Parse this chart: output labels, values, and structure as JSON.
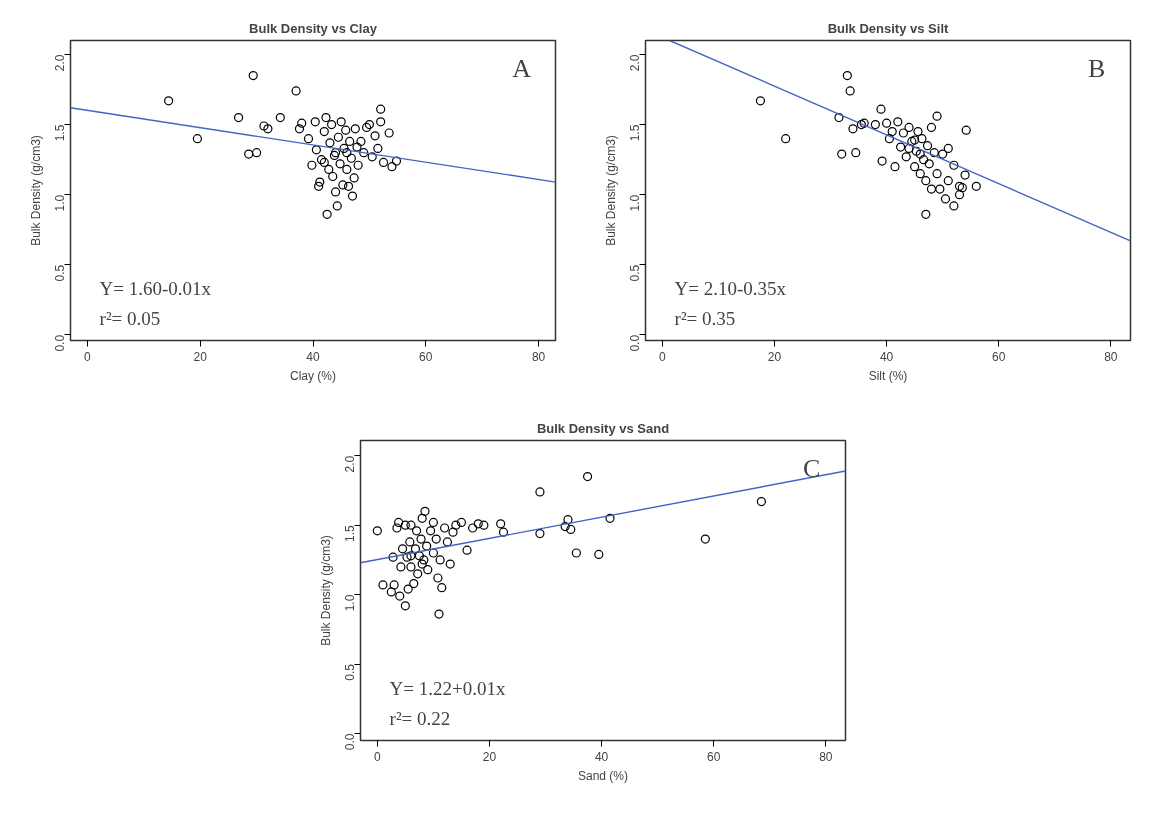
{
  "chart_data": [
    {
      "type": "scatter",
      "title": "Bulk Density vs Clay",
      "xlabel": "Clay (%)",
      "ylabel": "Bulk Density (g/cm3)",
      "xlim": [
        -3,
        83
      ],
      "ylim": [
        -0.04,
        2.1
      ],
      "xticks": [
        0,
        20,
        40,
        60,
        80
      ],
      "yticks": [
        {
          "value": 0,
          "label": "0.0"
        },
        {
          "value": 0.5,
          "label": "0.5"
        },
        {
          "value": 1,
          "label": "1.0"
        },
        {
          "value": 1.5,
          "label": "1.5"
        },
        {
          "value": 2,
          "label": "2.0"
        }
      ],
      "grid": false,
      "annotations": [
        "A",
        "Y= 1.60-0.01x",
        "r²= 0.05"
      ],
      "series": [
        {
          "marker": "circle",
          "color": "#000000",
          "x": [
            14.4,
            19.5,
            26.8,
            28.6,
            29.4,
            30.0,
            31.3,
            32.0,
            34.2,
            37.0,
            37.6,
            38.0,
            39.2,
            39.8,
            40.4,
            40.6,
            41,
            41.2,
            41.5,
            42,
            42.3,
            42.5,
            42.8,
            43,
            43.3,
            43.5,
            43.8,
            44,
            44.3,
            44.5,
            44.8,
            45,
            45.3,
            45.5,
            45.8,
            46,
            46.3,
            46.5,
            46.8,
            47,
            47.3,
            47.5,
            47.8,
            48,
            48.5,
            49,
            49.5,
            50,
            50.5,
            51,
            51.5,
            52,
            52,
            52.5,
            53.5,
            54,
            54.8,
            44,
            42,
            46
          ],
          "values": [
            1.67,
            1.4,
            1.55,
            1.29,
            1.85,
            1.3,
            1.49,
            1.47,
            1.55,
            1.74,
            1.47,
            1.51,
            1.4,
            1.21,
            1.52,
            1.32,
            1.06,
            1.09,
            1.25,
            1.45,
            1.55,
            0.86,
            1.18,
            1.37,
            1.5,
            1.13,
            1.28,
            1.02,
            0.92,
            1.41,
            1.22,
            1.52,
            1.07,
            1.33,
            1.46,
            1.18,
            1.06,
            1.38,
            1.26,
            0.99,
            1.12,
            1.47,
            1.34,
            1.21,
            1.38,
            1.3,
            1.48,
            1.5,
            1.27,
            1.42,
            1.33,
            1.61,
            1.52,
            1.23,
            1.44,
            1.2,
            1.24,
            1.3,
            1.23,
            1.3
          ]
        },
        {
          "type": "line",
          "marker": "none",
          "color": "#4463c4",
          "x": [
            -3,
            83
          ],
          "values": [
            1.62,
            1.09
          ]
        }
      ]
    },
    {
      "type": "scatter",
      "title": "Bulk Density vs Silt",
      "xlabel": "Silt (%)",
      "ylabel": "Bulk Density (g/cm3)",
      "xlim": [
        -3,
        83.5
      ],
      "ylim": [
        -0.04,
        2.1
      ],
      "xticks": [
        0,
        20,
        40,
        60,
        80
      ],
      "yticks": [
        {
          "value": 0,
          "label": "0.0"
        },
        {
          "value": 0.5,
          "label": "0.5"
        },
        {
          "value": 1,
          "label": "1.0"
        },
        {
          "value": 1.5,
          "label": "1.5"
        },
        {
          "value": 2,
          "label": "2.0"
        }
      ],
      "grid": false,
      "annotations": [
        "B",
        "Y= 2.10-0.35x",
        "r²= 0.35"
      ],
      "series": [
        {
          "marker": "circle",
          "color": "#000000",
          "x": [
            17.5,
            22,
            31.5,
            32,
            33,
            33.5,
            34,
            34.5,
            35.5,
            36,
            38,
            39,
            39.2,
            40,
            40.5,
            41,
            41.5,
            42,
            42.5,
            43,
            43.5,
            44,
            44.5,
            45,
            45.3,
            45.6,
            46,
            46.3,
            46.6,
            47,
            47,
            47.3,
            47.6,
            48,
            48,
            48.5,
            49,
            49,
            49.5,
            50,
            50.5,
            51,
            51,
            52,
            52,
            53,
            53,
            53.5,
            54,
            54.2,
            56,
            44,
            45,
            46
          ],
          "values": [
            1.67,
            1.4,
            1.55,
            1.29,
            1.85,
            1.74,
            1.47,
            1.3,
            1.5,
            1.51,
            1.5,
            1.61,
            1.24,
            1.51,
            1.4,
            1.45,
            1.2,
            1.52,
            1.34,
            1.44,
            1.27,
            1.48,
            1.38,
            1.2,
            1.31,
            1.45,
            1.15,
            1.4,
            1.25,
            0.86,
            1.1,
            1.35,
            1.22,
            1.48,
            1.04,
            1.3,
            1.15,
            1.56,
            1.04,
            1.29,
            0.97,
            1.1,
            1.33,
            1.21,
            0.92,
            1.06,
            1.0,
            1.05,
            1.14,
            1.46,
            1.06,
            1.33,
            1.39,
            1.29
          ]
        },
        {
          "type": "line",
          "marker": "none",
          "color": "#4463c4",
          "x": [
            1.3,
            83.5
          ],
          "values": [
            2.1,
            0.67
          ]
        }
      ]
    },
    {
      "type": "scatter",
      "title": "Bulk Density vs Sand",
      "xlabel": "Sand (%)",
      "ylabel": "Bulk Density (g/cm3)",
      "xlim": [
        -3,
        83.5
      ],
      "ylim": [
        -0.05,
        2.11
      ],
      "xticks": [
        0,
        20,
        40,
        60,
        80
      ],
      "yticks": [
        {
          "value": 0,
          "label": "0.0"
        },
        {
          "value": 0.5,
          "label": "0.5"
        },
        {
          "value": 1,
          "label": "1.0"
        },
        {
          "value": 1.5,
          "label": "1.5"
        },
        {
          "value": 2,
          "label": "2.0"
        }
      ],
      "grid": false,
      "annotations": [
        "C",
        "Y= 1.22+0.01x",
        "r²= 0.22"
      ],
      "series": [
        {
          "marker": "circle",
          "color": "#000000",
          "x": [
            0,
            1,
            2.5,
            2.8,
            3,
            3.5,
            3.8,
            4,
            4.2,
            4.5,
            5,
            5,
            5.3,
            5.5,
            5.8,
            6,
            6,
            6.5,
            6.8,
            7,
            7.2,
            7.5,
            7.8,
            8,
            8.3,
            8.5,
            8.8,
            9,
            9.5,
            10,
            10,
            10.5,
            10.8,
            11,
            11.2,
            11.5,
            12,
            12.5,
            13,
            13.5,
            14,
            15,
            16,
            17,
            18,
            19,
            22,
            22.5,
            29,
            29,
            33.5,
            34,
            34.5,
            35.5,
            37.5,
            39.5,
            41.5,
            58.5,
            68.5,
            6,
            8
          ],
          "values": [
            1.46,
            1.07,
            1.02,
            1.27,
            1.07,
            1.48,
            1.52,
            0.99,
            1.2,
            1.33,
            0.92,
            1.5,
            1.27,
            1.04,
            1.38,
            1.2,
            1.5,
            1.08,
            1.33,
            1.46,
            1.15,
            1.28,
            1.4,
            1.55,
            1.25,
            1.6,
            1.35,
            1.18,
            1.46,
            1.3,
            1.52,
            1.4,
            1.12,
            0.86,
            1.25,
            1.05,
            1.48,
            1.38,
            1.22,
            1.45,
            1.5,
            1.52,
            1.32,
            1.48,
            1.51,
            1.5,
            1.51,
            1.45,
            1.74,
            1.44,
            1.49,
            1.54,
            1.47,
            1.3,
            1.85,
            1.29,
            1.55,
            1.4,
            1.67,
            1.28,
            1.22
          ]
        },
        {
          "type": "line",
          "marker": "none",
          "color": "#4463c4",
          "x": [
            -3,
            83.5
          ],
          "values": [
            1.23,
            1.89
          ]
        }
      ]
    }
  ]
}
